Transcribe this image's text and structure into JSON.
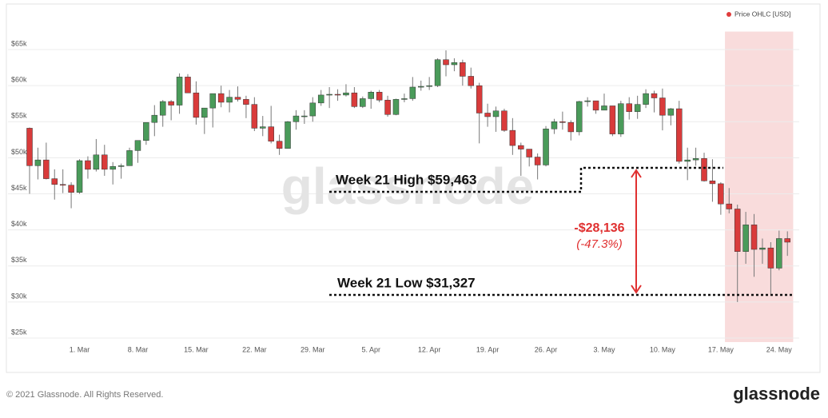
{
  "chart_data": {
    "type": "candlestick",
    "series_name": "Price OHLC [USD]",
    "legend_color": "#e03c3c",
    "up_color": "#4a9b5a",
    "down_color": "#d93b3b",
    "x": [
      "23. Feb",
      "24. Feb",
      "25. Feb",
      "26. Feb",
      "27. Feb",
      "28. Feb",
      "1. Mar",
      "2. Mar",
      "3. Mar",
      "4. Mar",
      "5. Mar",
      "6. Mar",
      "7. Mar",
      "8. Mar",
      "9. Mar",
      "10. Mar",
      "11. Mar",
      "12. Mar",
      "13. Mar",
      "14. Mar",
      "15. Mar",
      "16. Mar",
      "17. Mar",
      "18. Mar",
      "19. Mar",
      "20. Mar",
      "21. Mar",
      "22. Mar",
      "23. Mar",
      "24. Mar",
      "25. Mar",
      "26. Mar",
      "27. Mar",
      "28. Mar",
      "29. Mar",
      "30. Mar",
      "31. Mar",
      "1. Apr",
      "2. Apr",
      "3. Apr",
      "4. Apr",
      "5. Apr",
      "6. Apr",
      "7. Apr",
      "8. Apr",
      "9. Apr",
      "10. Apr",
      "11. Apr",
      "12. Apr",
      "13. Apr",
      "14. Apr",
      "15. Apr",
      "16. Apr",
      "17. Apr",
      "18. Apr",
      "19. Apr",
      "20. Apr",
      "21. Apr",
      "22. Apr",
      "23. Apr",
      "24. Apr",
      "25. Apr",
      "26. Apr",
      "27. Apr",
      "28. Apr",
      "29. Apr",
      "30. Apr",
      "1. May",
      "2. May",
      "3. May",
      "4. May",
      "5. May",
      "6. May",
      "7. May",
      "8. May",
      "9. May",
      "10. May",
      "11. May",
      "12. May",
      "13. May",
      "14. May",
      "15. May",
      "16. May",
      "17. May",
      "18. May",
      "19. May",
      "20. May",
      "21. May",
      "22. May",
      "23. May",
      "24. May",
      "25. May"
    ],
    "open": [
      54100,
      48900,
      49700,
      47100,
      46300,
      46200,
      45200,
      49600,
      48400,
      50400,
      48400,
      48800,
      48900,
      51000,
      52400,
      54900,
      55900,
      57800,
      57300,
      61200,
      59000,
      55600,
      56900,
      58900,
      57700,
      58400,
      58100,
      57400,
      54100,
      54300,
      52300,
      51300,
      55000,
      55800,
      55800,
      57600,
      58700,
      58800,
      58700,
      59000,
      57100,
      58200,
      59100,
      58000,
      56000,
      58100,
      58200,
      59800,
      59900,
      60000,
      63600,
      62900,
      63200,
      61300,
      60000,
      56200,
      55700,
      56500,
      53800,
      51700,
      51200,
      50100,
      49000,
      54000,
      55000,
      54900,
      53600,
      57800,
      57900,
      56600,
      57200,
      53300,
      57500,
      56400,
      57400,
      58900,
      58300,
      55900,
      56800,
      49500,
      49700,
      49900,
      46800,
      46400,
      43600,
      42900,
      37000,
      40700,
      37300,
      37500,
      34700,
      38800
    ],
    "high": [
      54200,
      51400,
      52100,
      48400,
      48400,
      46600,
      49800,
      50200,
      52600,
      51800,
      49400,
      49200,
      51400,
      52400,
      54900,
      57300,
      58000,
      58000,
      61700,
      61600,
      60600,
      56900,
      58900,
      60000,
      59400,
      59900,
      58600,
      58400,
      55800,
      57200,
      53200,
      55100,
      56600,
      56600,
      58400,
      59400,
      59800,
      59500,
      60200,
      59800,
      58500,
      59300,
      59400,
      58600,
      58200,
      58900,
      61200,
      60700,
      61200,
      63800,
      64900,
      63800,
      63600,
      62500,
      60400,
      57500,
      57100,
      56800,
      55500,
      52100,
      51200,
      50600,
      54400,
      55400,
      56400,
      55200,
      57900,
      58400,
      57900,
      58900,
      57200,
      57900,
      58400,
      58600,
      59500,
      59300,
      59600,
      56900,
      57900,
      51400,
      51400,
      50700,
      49800,
      46600,
      45800,
      43500,
      42500,
      42200,
      38800,
      38300,
      39900,
      39800
    ],
    "low": [
      45000,
      47000,
      47000,
      44200,
      45100,
      43000,
      45000,
      47100,
      48100,
      47500,
      46300,
      47100,
      48900,
      49300,
      51800,
      53000,
      54300,
      55200,
      56100,
      59000,
      54600,
      53300,
      54200,
      57000,
      56300,
      57800,
      55500,
      53700,
      53000,
      52000,
      50400,
      51300,
      53900,
      54700,
      55000,
      57200,
      56900,
      57900,
      58500,
      56900,
      56900,
      56800,
      57700,
      55700,
      55900,
      57700,
      57900,
      59300,
      59400,
      59800,
      61300,
      62000,
      60000,
      59600,
      52000,
      54300,
      53600,
      53600,
      50400,
      47500,
      48800,
      47000,
      48800,
      53300,
      53900,
      52400,
      53100,
      57100,
      56100,
      56600,
      53000,
      52900,
      55300,
      55400,
      56900,
      56300,
      53800,
      54500,
      49200,
      46900,
      48900,
      46700,
      43900,
      42100,
      42300,
      30000,
      35300,
      33500,
      35300,
      31100,
      34400,
      36400
    ],
    "close": [
      48900,
      49700,
      47100,
      46300,
      46200,
      45200,
      49600,
      48400,
      50400,
      48400,
      48800,
      48900,
      51000,
      52400,
      54900,
      55900,
      57800,
      57300,
      61200,
      59000,
      55600,
      56900,
      58900,
      57700,
      58400,
      58100,
      57400,
      54100,
      54300,
      52300,
      51300,
      55000,
      55800,
      55800,
      57600,
      58700,
      58800,
      58700,
      59000,
      57100,
      58200,
      59100,
      58000,
      56000,
      58100,
      58200,
      59800,
      59900,
      60000,
      63600,
      62900,
      63200,
      61300,
      60000,
      56200,
      55700,
      56500,
      53800,
      51700,
      51200,
      50100,
      49000,
      54000,
      55000,
      54900,
      53600,
      57800,
      57900,
      56600,
      57200,
      53300,
      57500,
      56400,
      57400,
      58900,
      58300,
      55900,
      56800,
      49500,
      49700,
      49900,
      46800,
      46400,
      43600,
      42900,
      37000,
      40700,
      37300,
      37500,
      34700,
      38800,
      38300
    ],
    "xticks": [
      "1. Mar",
      "8. Mar",
      "15. Mar",
      "22. Mar",
      "29. Mar",
      "5. Apr",
      "12. Apr",
      "19. Apr",
      "26. Apr",
      "3. May",
      "10. May",
      "17. May",
      "24. May"
    ],
    "ylim": [
      25000,
      67500
    ],
    "yticks": [
      {
        "value": 25000,
        "label": "$25k"
      },
      {
        "value": 30000,
        "label": "$30k"
      },
      {
        "value": 35000,
        "label": "$35k"
      },
      {
        "value": 40000,
        "label": "$40k"
      },
      {
        "value": 45000,
        "label": "$45k"
      },
      {
        "value": 50000,
        "label": "$50k"
      },
      {
        "value": 55000,
        "label": "$55k"
      },
      {
        "value": 60000,
        "label": "$60k"
      },
      {
        "value": 65000,
        "label": "$65k"
      }
    ],
    "grid": true,
    "highlight_from": "18. May",
    "highlight_color": "#f9dcdc",
    "annotations": {
      "high_label": "Week 21 High $59,463",
      "low_label": "Week 21 Low $31,327",
      "change": "-$28,136",
      "change_pct": "(-47.3%)"
    }
  },
  "watermark": "glassnode",
  "footer": {
    "copyright": "© 2021 Glassnode. All Rights Reserved.",
    "logo": "glassnode"
  }
}
